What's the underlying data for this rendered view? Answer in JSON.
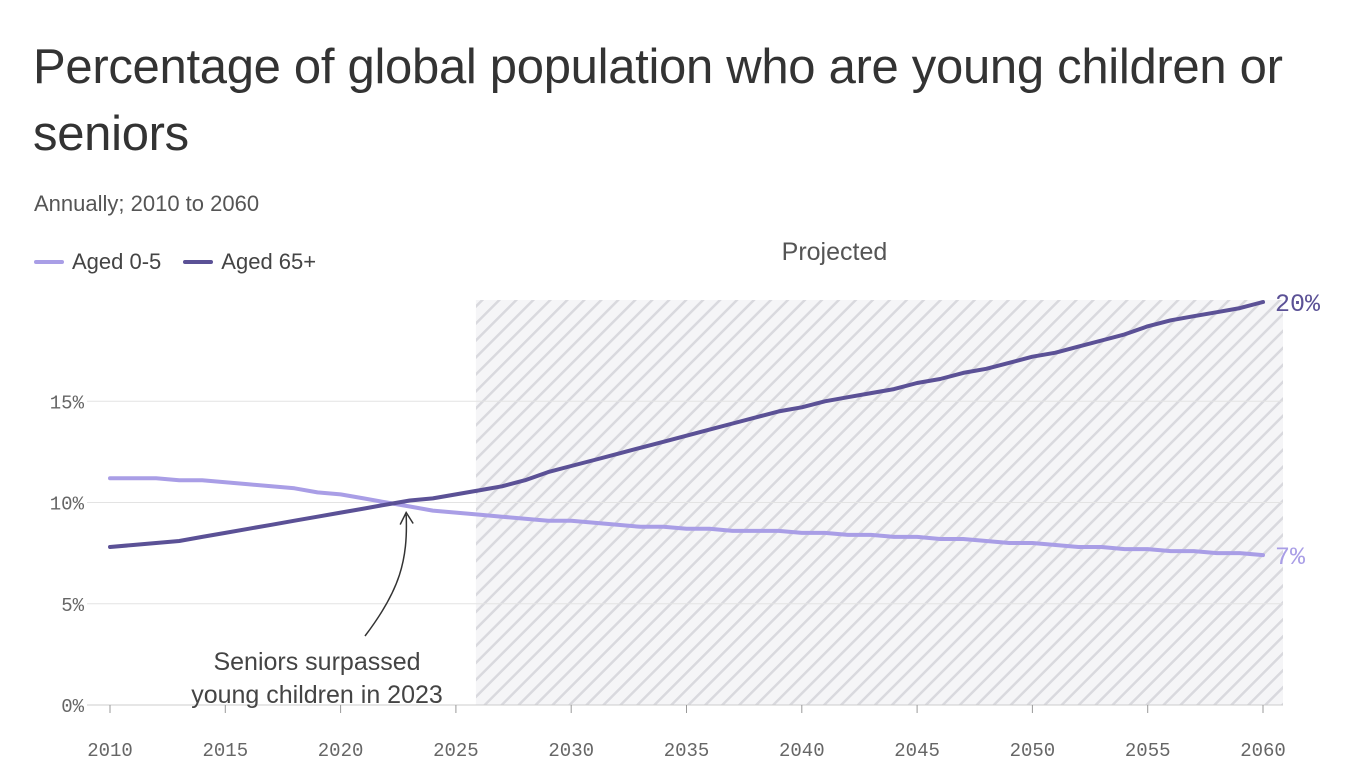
{
  "header": {
    "title": "Percentage of global population who are young children or seniors",
    "subtitle": "Annually; 2010 to 2060"
  },
  "legend": [
    {
      "label": "Aged 0-5",
      "color": "#a99ee6"
    },
    {
      "label": "Aged 65+",
      "color": "#5b5196"
    }
  ],
  "chart_data": {
    "type": "line",
    "x": [
      2010,
      2011,
      2012,
      2013,
      2014,
      2015,
      2016,
      2017,
      2018,
      2019,
      2020,
      2021,
      2022,
      2023,
      2024,
      2025,
      2026,
      2027,
      2028,
      2029,
      2030,
      2031,
      2032,
      2033,
      2034,
      2035,
      2036,
      2037,
      2038,
      2039,
      2040,
      2041,
      2042,
      2043,
      2044,
      2045,
      2046,
      2047,
      2048,
      2049,
      2050,
      2051,
      2052,
      2053,
      2054,
      2055,
      2056,
      2057,
      2058,
      2059,
      2060
    ],
    "series": [
      {
        "name": "Aged 0-5",
        "color": "#a99ee6",
        "values": [
          11.2,
          11.2,
          11.2,
          11.1,
          11.1,
          11.0,
          10.9,
          10.8,
          10.7,
          10.5,
          10.4,
          10.2,
          10.0,
          9.8,
          9.6,
          9.5,
          9.4,
          9.3,
          9.2,
          9.1,
          9.1,
          9.0,
          8.9,
          8.8,
          8.8,
          8.7,
          8.7,
          8.6,
          8.6,
          8.6,
          8.5,
          8.5,
          8.4,
          8.4,
          8.3,
          8.3,
          8.2,
          8.2,
          8.1,
          8.0,
          8.0,
          7.9,
          7.8,
          7.8,
          7.7,
          7.7,
          7.6,
          7.6,
          7.5,
          7.5,
          7.4
        ],
        "end_label": "7%"
      },
      {
        "name": "Aged 65+",
        "color": "#5b5196",
        "values": [
          7.8,
          7.9,
          8.0,
          8.1,
          8.3,
          8.5,
          8.7,
          8.9,
          9.1,
          9.3,
          9.5,
          9.7,
          9.9,
          10.1,
          10.2,
          10.4,
          10.6,
          10.8,
          11.1,
          11.5,
          11.8,
          12.1,
          12.4,
          12.7,
          13.0,
          13.3,
          13.6,
          13.9,
          14.2,
          14.5,
          14.7,
          15.0,
          15.2,
          15.4,
          15.6,
          15.9,
          16.1,
          16.4,
          16.6,
          16.9,
          17.2,
          17.4,
          17.7,
          18.0,
          18.3,
          18.7,
          19.0,
          19.2,
          19.4,
          19.6,
          19.9
        ],
        "end_label": "20%"
      }
    ],
    "xlim": [
      2010,
      2060
    ],
    "ylim": [
      0,
      20
    ],
    "x_ticks": [
      {
        "value": 2010,
        "label": "2010"
      },
      {
        "value": 2015,
        "label": "2015"
      },
      {
        "value": 2020,
        "label": "2020"
      },
      {
        "value": 2025,
        "label": "2025"
      },
      {
        "value": 2030,
        "label": "2030"
      },
      {
        "value": 2035,
        "label": "2035"
      },
      {
        "value": 2040,
        "label": "2040"
      },
      {
        "value": 2045,
        "label": "2045"
      },
      {
        "value": 2050,
        "label": "2050"
      },
      {
        "value": 2055,
        "label": "2055"
      },
      {
        "value": 2060,
        "label": "2060"
      }
    ],
    "y_ticks": [
      {
        "value": 0,
        "label": "0%"
      },
      {
        "value": 5,
        "label": "5%"
      },
      {
        "value": 10,
        "label": "10%"
      },
      {
        "value": 15,
        "label": "15%"
      }
    ],
    "grid": true,
    "projected": {
      "start": 2026,
      "end": 2060,
      "label": "Projected"
    },
    "annotation": {
      "lines": [
        "Seniors surpassed",
        "young children in 2023"
      ],
      "x": 2022.8,
      "y": 9.9
    }
  }
}
